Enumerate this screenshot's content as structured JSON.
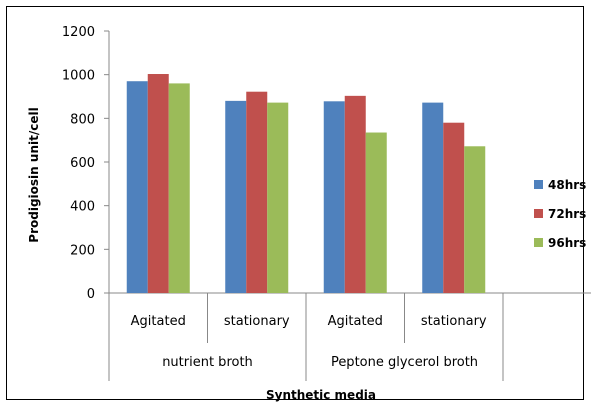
{
  "chart_data": {
    "type": "bar",
    "categories": [
      "Agitated",
      "stationary",
      "Agitated",
      "stationary"
    ],
    "groups": [
      {
        "label": "nutrient broth",
        "span": [
          0,
          1
        ]
      },
      {
        "label": "Peptone glycerol broth",
        "span": [
          2,
          3
        ]
      }
    ],
    "series": [
      {
        "name": "48hrs",
        "color": "#4F81BD",
        "values": [
          970,
          880,
          878,
          872
        ]
      },
      {
        "name": "72hrs",
        "color": "#C0504D",
        "values": [
          1003,
          922,
          903,
          780
        ]
      },
      {
        "name": "96hrs",
        "color": "#9BBB59",
        "values": [
          960,
          872,
          735,
          672
        ]
      }
    ],
    "xlabel": "Synthetic media",
    "ylabel": "Prodigiosin unit/cell",
    "ylim": [
      0,
      1200
    ],
    "yticks": [
      0,
      200,
      400,
      600,
      800,
      1000,
      1200
    ],
    "grid": false,
    "legend_position": "right"
  }
}
